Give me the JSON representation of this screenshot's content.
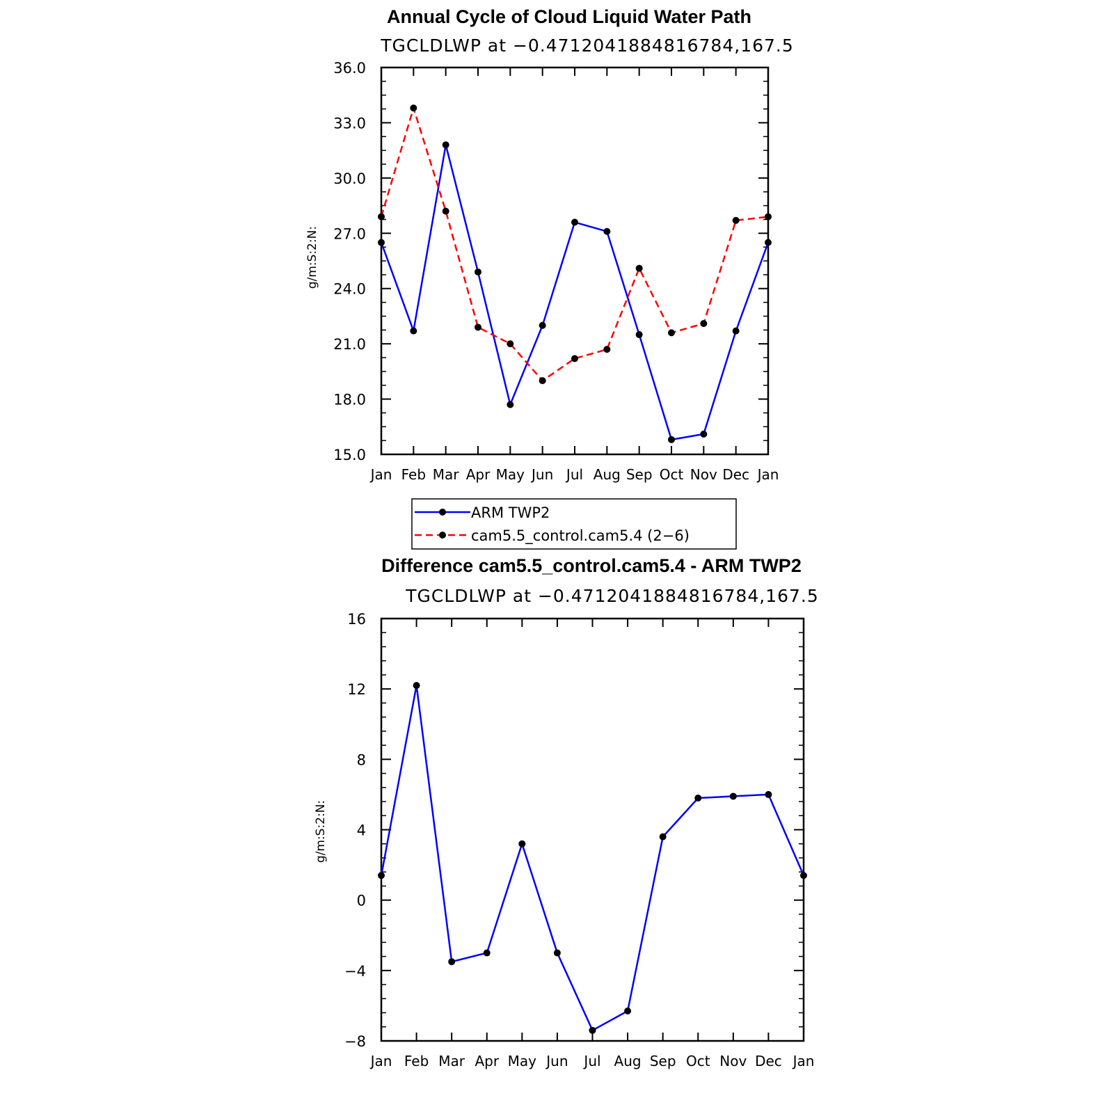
{
  "chart_data": [
    {
      "type": "line",
      "title": "Annual Cycle of Cloud Liquid Water Path",
      "subtitle": "TGCLDLWP at −0.4712041884816784,167.5",
      "xlabel": "",
      "ylabel": "g/m:S:2:N:",
      "categories": [
        "Jan",
        "Feb",
        "Mar",
        "Apr",
        "May",
        "Jun",
        "Jul",
        "Aug",
        "Sep",
        "Oct",
        "Nov",
        "Dec",
        "Jan"
      ],
      "ylim": [
        15.0,
        36.0
      ],
      "yticks": [
        "15.0",
        "18.0",
        "21.0",
        "24.0",
        "27.0",
        "30.0",
        "33.0",
        "36.0"
      ],
      "series": [
        {
          "name": "ARM TWP2",
          "color": "#0000ff",
          "dash": "solid",
          "values": [
            26.5,
            21.7,
            31.8,
            24.9,
            17.7,
            22.0,
            27.6,
            27.1,
            21.5,
            15.8,
            16.1,
            21.7,
            26.5
          ]
        },
        {
          "name": "cam5.5_control.cam5.4 (2−6)",
          "color": "#ff0000",
          "dash": "dashed",
          "values": [
            27.9,
            33.8,
            28.2,
            21.9,
            21.0,
            19.0,
            20.2,
            20.7,
            25.1,
            21.6,
            22.1,
            27.7,
            27.9
          ]
        }
      ],
      "legend": "below"
    },
    {
      "type": "line",
      "title": "Difference cam5.5_control.cam5.4 - ARM TWP2",
      "subtitle": "TGCLDLWP at −0.4712041884816784,167.5",
      "xlabel": "",
      "ylabel": "g/m:S:2:N:",
      "categories": [
        "Jan",
        "Feb",
        "Mar",
        "Apr",
        "May",
        "Jun",
        "Jul",
        "Aug",
        "Sep",
        "Oct",
        "Nov",
        "Dec",
        "Jan"
      ],
      "ylim": [
        -8,
        16
      ],
      "yticks": [
        "−8",
        "−4",
        "0",
        "4",
        "8",
        "12",
        "16"
      ],
      "series": [
        {
          "color": "#0000ff",
          "dash": "solid",
          "values": [
            1.4,
            12.2,
            -3.5,
            -3.0,
            3.2,
            -3.0,
            -7.4,
            -6.3,
            3.6,
            5.8,
            5.9,
            6.0,
            1.4
          ]
        }
      ]
    }
  ]
}
